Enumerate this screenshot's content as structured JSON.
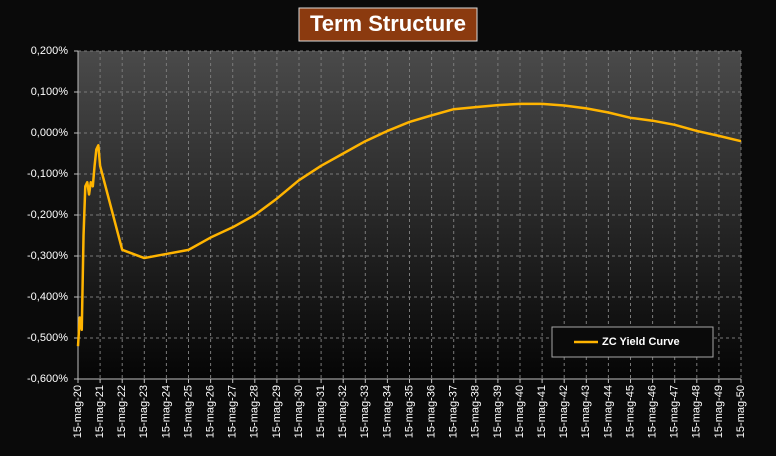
{
  "chart_data": {
    "type": "line",
    "title": "Term Structure",
    "x": [
      2020.0,
      2020.08,
      2020.17,
      2020.25,
      2020.33,
      2020.42,
      2020.5,
      2020.58,
      2020.67,
      2020.75,
      2020.83,
      2020.92,
      2021.0,
      2022,
      2023,
      2024,
      2025,
      2026,
      2027,
      2028,
      2029,
      2030,
      2031,
      2032,
      2033,
      2034,
      2035,
      2036,
      2037,
      2038,
      2039,
      2040,
      2041,
      2042,
      2043,
      2044,
      2045,
      2046,
      2047,
      2048,
      2049,
      2050
    ],
    "series": [
      {
        "name": "ZC Yield Curve",
        "color": "#ffb400",
        "values": [
          -0.52,
          -0.45,
          -0.48,
          -0.25,
          -0.13,
          -0.12,
          -0.15,
          -0.12,
          -0.13,
          -0.08,
          -0.04,
          -0.03,
          -0.08,
          -0.285,
          -0.305,
          -0.295,
          -0.285,
          -0.255,
          -0.23,
          -0.2,
          -0.16,
          -0.115,
          -0.08,
          -0.05,
          -0.02,
          0.005,
          0.027,
          0.043,
          0.058,
          0.063,
          0.068,
          0.071,
          0.071,
          0.067,
          0.06,
          0.05,
          0.037,
          0.03,
          0.02,
          0.005,
          -0.007,
          -0.02
        ]
      }
    ],
    "xlim": [
      2020,
      2050
    ],
    "xticks": [
      {
        "value": 2020,
        "label": "15-mag-20"
      },
      {
        "value": 2021,
        "label": "15-mag-21"
      },
      {
        "value": 2022,
        "label": "15-mag-22"
      },
      {
        "value": 2023,
        "label": "15-mag-23"
      },
      {
        "value": 2024,
        "label": "15-mag-24"
      },
      {
        "value": 2025,
        "label": "15-mag-25"
      },
      {
        "value": 2026,
        "label": "15-mag-26"
      },
      {
        "value": 2027,
        "label": "15-mag-27"
      },
      {
        "value": 2028,
        "label": "15-mag-28"
      },
      {
        "value": 2029,
        "label": "15-mag-29"
      },
      {
        "value": 2030,
        "label": "15-mag-30"
      },
      {
        "value": 2031,
        "label": "15-mag-31"
      },
      {
        "value": 2032,
        "label": "15-mag-32"
      },
      {
        "value": 2033,
        "label": "15-mag-33"
      },
      {
        "value": 2034,
        "label": "15-mag-34"
      },
      {
        "value": 2035,
        "label": "15-mag-35"
      },
      {
        "value": 2036,
        "label": "15-mag-36"
      },
      {
        "value": 2037,
        "label": "15-mag-37"
      },
      {
        "value": 2038,
        "label": "15-mag-38"
      },
      {
        "value": 2039,
        "label": "15-mag-39"
      },
      {
        "value": 2040,
        "label": "15-mag-40"
      },
      {
        "value": 2041,
        "label": "15-mag-41"
      },
      {
        "value": 2042,
        "label": "15-mag-42"
      },
      {
        "value": 2043,
        "label": "15-mag-43"
      },
      {
        "value": 2044,
        "label": "15-mag-44"
      },
      {
        "value": 2045,
        "label": "15-mag-45"
      },
      {
        "value": 2046,
        "label": "15-mag-46"
      },
      {
        "value": 2047,
        "label": "15-mag-47"
      },
      {
        "value": 2048,
        "label": "15-mag-48"
      },
      {
        "value": 2049,
        "label": "15-mag-49"
      },
      {
        "value": 2050,
        "label": "15-mag-50"
      }
    ],
    "ylim": [
      -0.6,
      0.2
    ],
    "yticks": [
      {
        "value": -0.6,
        "label": "-0,600%"
      },
      {
        "value": -0.5,
        "label": "-0,500%"
      },
      {
        "value": -0.4,
        "label": "-0,400%"
      },
      {
        "value": -0.3,
        "label": "-0,300%"
      },
      {
        "value": -0.2,
        "label": "-0,200%"
      },
      {
        "value": -0.1,
        "label": "-0,100%"
      },
      {
        "value": 0,
        "label": "0,000%"
      },
      {
        "value": 0.1,
        "label": "0,100%"
      },
      {
        "value": 0.2,
        "label": "0,200%"
      }
    ],
    "grid": true,
    "legend_position": "lower right"
  }
}
